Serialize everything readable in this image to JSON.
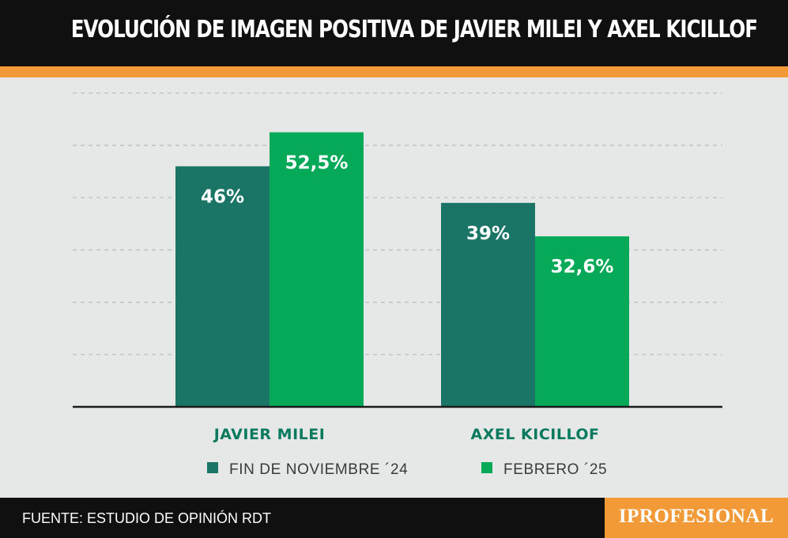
{
  "title": "EVOLUCIÓN DE IMAGEN POSITIVA DE JAVIER MILEI Y AXEL KICILLOF",
  "colors": {
    "header_bg": "#101010",
    "accent": "#f39a38",
    "plot_bg": "#e6e8e7",
    "series_nov": "#1a7566",
    "series_feb": "#06a957",
    "category_label": "#0a7a5e",
    "brand_bg": "#f39a38"
  },
  "chart_data": {
    "type": "bar",
    "title": "EVOLUCIÓN DE IMAGEN POSITIVA DE JAVIER MILEI Y AXEL KICILLOF",
    "categories": [
      "JAVIER MILEI",
      "AXEL KICILLOF"
    ],
    "series": [
      {
        "name": "FIN DE NOVIEMBRE ´24",
        "values": [
          46,
          39
        ],
        "labels": [
          "46%",
          "39%"
        ]
      },
      {
        "name": "FEBRERO ´25",
        "values": [
          52.5,
          32.6
        ],
        "labels": [
          "52,5%",
          "32,6%"
        ]
      }
    ],
    "ylim": [
      0,
      60
    ],
    "grid": true,
    "legend_position": "bottom"
  },
  "footer": {
    "source": "FUENTE: ESTUDIO DE OPINIÓN RDT",
    "brand": "IPROFESIONAL"
  }
}
